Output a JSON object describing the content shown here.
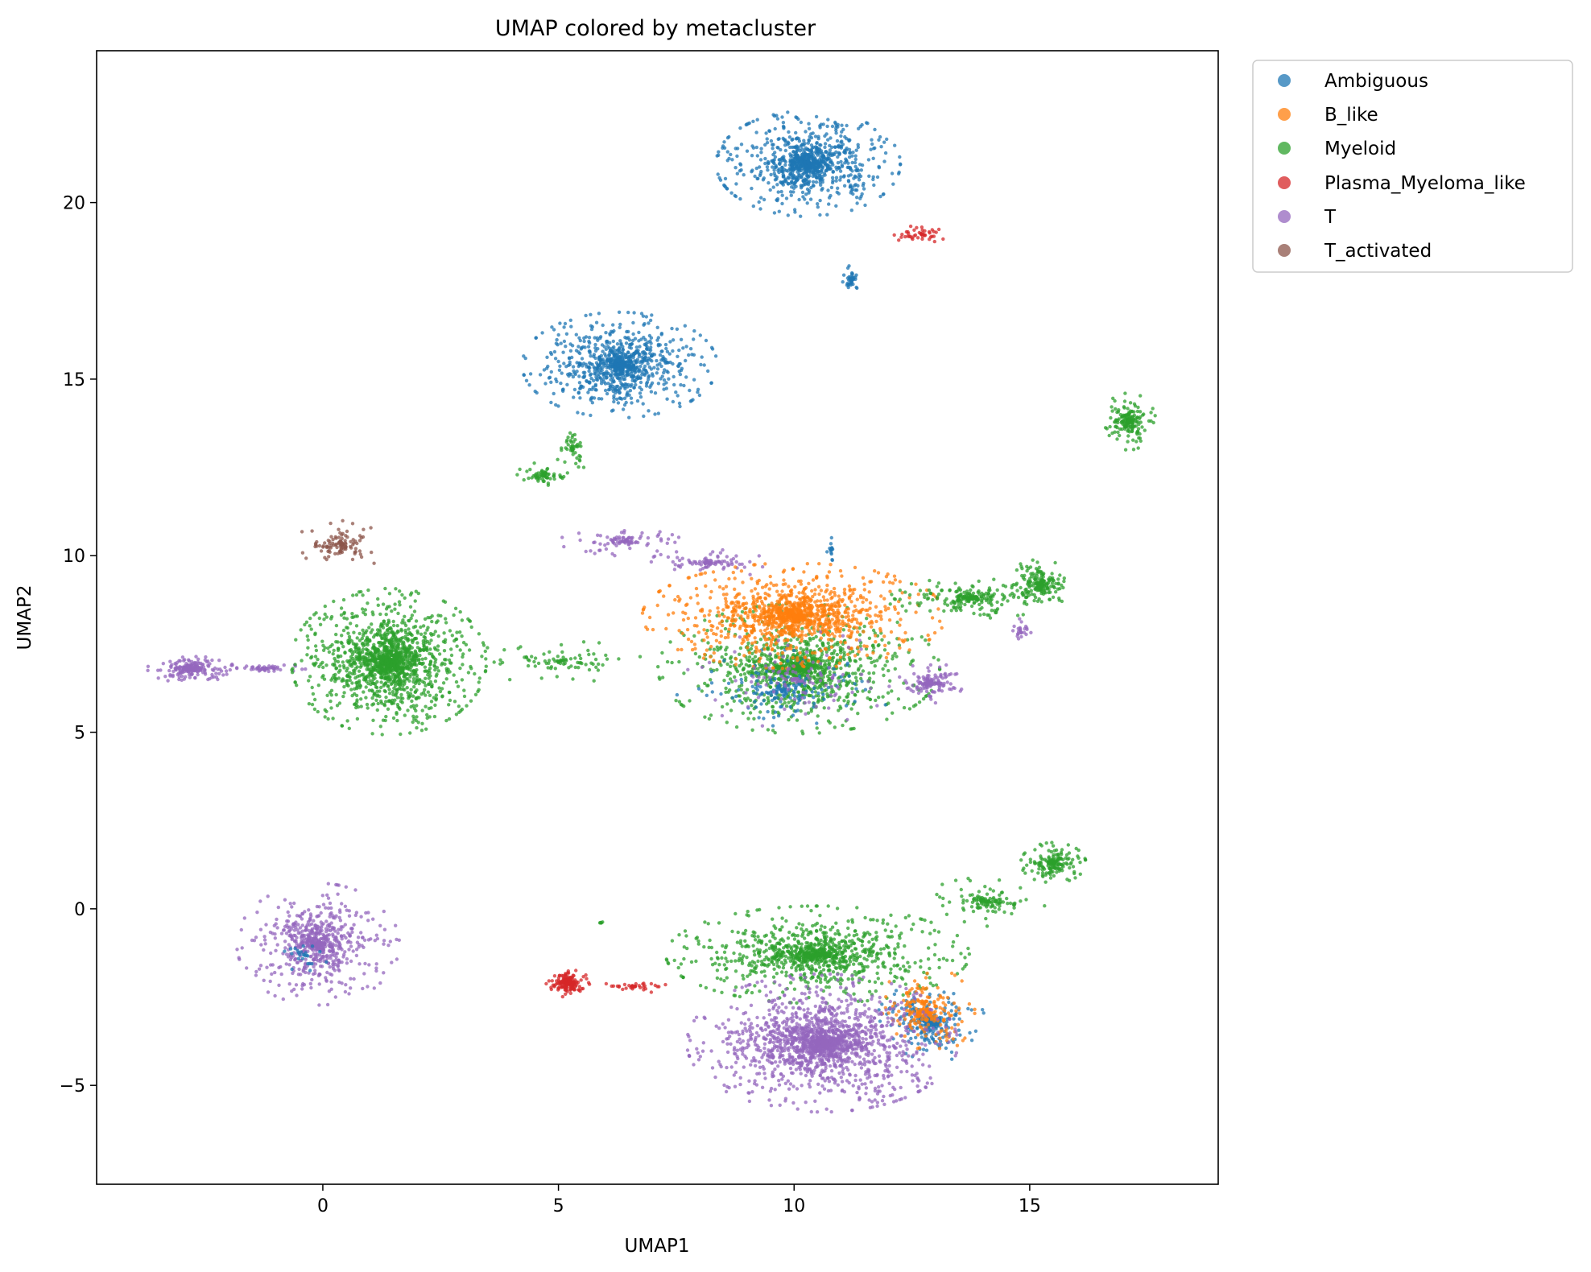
{
  "chart_data": {
    "type": "scatter",
    "title": "UMAP colored by metacluster",
    "xlabel": "UMAP1",
    "ylabel": "UMAP2",
    "xlim": [
      -4.8,
      19.0
    ],
    "ylim": [
      -7.8,
      24.3
    ],
    "xticks": [
      0,
      5,
      10,
      15
    ],
    "yticks": [
      -5,
      0,
      5,
      10,
      15,
      20
    ],
    "xtick_labels": [
      "0",
      "5",
      "10",
      "15"
    ],
    "ytick_labels": [
      "−5",
      "0",
      "5",
      "10",
      "15",
      "20"
    ],
    "legend_position": "outside top-right",
    "series": [
      {
        "name": "Ambiguous",
        "color": "#1f77b4"
      },
      {
        "name": "B_like",
        "color": "#ff7f0e"
      },
      {
        "name": "Myeloid",
        "color": "#2ca02c"
      },
      {
        "name": "Plasma_Myeloma_like",
        "color": "#d62728"
      },
      {
        "name": "T",
        "color": "#9467bd"
      },
      {
        "name": "T_activated",
        "color": "#8c564b"
      }
    ],
    "clusters": [
      {
        "series": "Ambiguous",
        "cx": 10.3,
        "cy": 21.1,
        "rx": 1.7,
        "ry": 1.3,
        "n": 950
      },
      {
        "series": "Ambiguous",
        "cx": 11.2,
        "cy": 17.8,
        "rx": 0.2,
        "ry": 0.4,
        "n": 40
      },
      {
        "series": "Plasma_Myeloma_like",
        "cx": 12.7,
        "cy": 19.1,
        "rx": 0.5,
        "ry": 0.3,
        "n": 45
      },
      {
        "series": "Ambiguous",
        "cx": 6.3,
        "cy": 15.4,
        "rx": 1.8,
        "ry": 1.3,
        "n": 900
      },
      {
        "series": "Myeloid",
        "cx": 17.1,
        "cy": 13.8,
        "rx": 0.5,
        "ry": 0.7,
        "n": 180
      },
      {
        "series": "Myeloid",
        "cx": 4.7,
        "cy": 12.3,
        "rx": 0.5,
        "ry": 0.3,
        "n": 70
      },
      {
        "series": "Myeloid",
        "cx": 5.3,
        "cy": 13.0,
        "rx": 0.3,
        "ry": 0.6,
        "n": 50
      },
      {
        "series": "T_activated",
        "cx": 0.4,
        "cy": 10.3,
        "rx": 0.9,
        "ry": 0.6,
        "n": 110
      },
      {
        "series": "T",
        "cx": -2.8,
        "cy": 6.8,
        "rx": 0.8,
        "ry": 0.35,
        "n": 200
      },
      {
        "series": "T",
        "cx": -1.2,
        "cy": 6.8,
        "rx": 0.9,
        "ry": 0.15,
        "n": 60
      },
      {
        "series": "Myeloid",
        "cx": 1.4,
        "cy": 7.0,
        "rx": 1.8,
        "ry": 1.8,
        "n": 1500
      },
      {
        "series": "Myeloid",
        "cx": 5.0,
        "cy": 7.0,
        "rx": 2.0,
        "ry": 0.5,
        "n": 90
      },
      {
        "series": "T",
        "cx": 6.4,
        "cy": 10.4,
        "rx": 1.2,
        "ry": 0.35,
        "n": 90
      },
      {
        "series": "T",
        "cx": 8.2,
        "cy": 9.8,
        "rx": 1.1,
        "ry": 0.4,
        "n": 90
      },
      {
        "series": "Myeloid",
        "cx": 10.1,
        "cy": 6.8,
        "rx": 2.6,
        "ry": 1.6,
        "n": 1100
      },
      {
        "series": "Ambiguous",
        "cx": 9.8,
        "cy": 6.2,
        "rx": 2.0,
        "ry": 1.0,
        "n": 160
      },
      {
        "series": "B_like",
        "cx": 10.0,
        "cy": 8.3,
        "rx": 2.8,
        "ry": 1.3,
        "n": 1200
      },
      {
        "series": "T",
        "cx": 10.0,
        "cy": 6.5,
        "rx": 2.0,
        "ry": 1.2,
        "n": 110
      },
      {
        "series": "Myeloid",
        "cx": 13.8,
        "cy": 8.8,
        "rx": 1.6,
        "ry": 0.5,
        "n": 240
      },
      {
        "series": "Myeloid",
        "cx": 15.2,
        "cy": 9.2,
        "rx": 0.6,
        "ry": 0.6,
        "n": 180
      },
      {
        "series": "T",
        "cx": 12.9,
        "cy": 6.4,
        "rx": 0.6,
        "ry": 0.5,
        "n": 140
      },
      {
        "series": "T",
        "cx": 14.8,
        "cy": 7.9,
        "rx": 0.2,
        "ry": 0.4,
        "n": 25
      },
      {
        "series": "Ambiguous",
        "cx": 10.8,
        "cy": 10.2,
        "rx": 0.1,
        "ry": 0.4,
        "n": 15
      },
      {
        "series": "T",
        "cx": -0.1,
        "cy": -1.0,
        "rx": 1.5,
        "ry": 1.5,
        "n": 650
      },
      {
        "series": "Ambiguous",
        "cx": -0.4,
        "cy": -1.3,
        "rx": 0.5,
        "ry": 0.4,
        "n": 25
      },
      {
        "series": "Plasma_Myeloma_like",
        "cx": 5.2,
        "cy": -2.1,
        "rx": 0.4,
        "ry": 0.35,
        "n": 180
      },
      {
        "series": "Plasma_Myeloma_like",
        "cx": 6.6,
        "cy": -2.2,
        "rx": 1.0,
        "ry": 0.15,
        "n": 40
      },
      {
        "series": "Myeloid",
        "cx": 10.5,
        "cy": -1.3,
        "rx": 2.8,
        "ry": 1.2,
        "n": 1000
      },
      {
        "series": "Myeloid",
        "cx": 14.1,
        "cy": 0.2,
        "rx": 1.2,
        "ry": 0.6,
        "n": 120
      },
      {
        "series": "Myeloid",
        "cx": 15.5,
        "cy": 1.3,
        "rx": 0.6,
        "ry": 0.5,
        "n": 180
      },
      {
        "series": "Ambiguous",
        "cx": 12.9,
        "cy": -3.2,
        "rx": 1.0,
        "ry": 1.0,
        "n": 280
      },
      {
        "series": "B_like",
        "cx": 12.8,
        "cy": -2.9,
        "rx": 0.9,
        "ry": 1.1,
        "n": 220
      },
      {
        "series": "T",
        "cx": 10.6,
        "cy": -3.8,
        "rx": 2.5,
        "ry": 1.7,
        "n": 1700
      },
      {
        "series": "Myeloid",
        "cx": 5.9,
        "cy": -0.4,
        "rx": 0.1,
        "ry": 0.1,
        "n": 6
      }
    ]
  }
}
